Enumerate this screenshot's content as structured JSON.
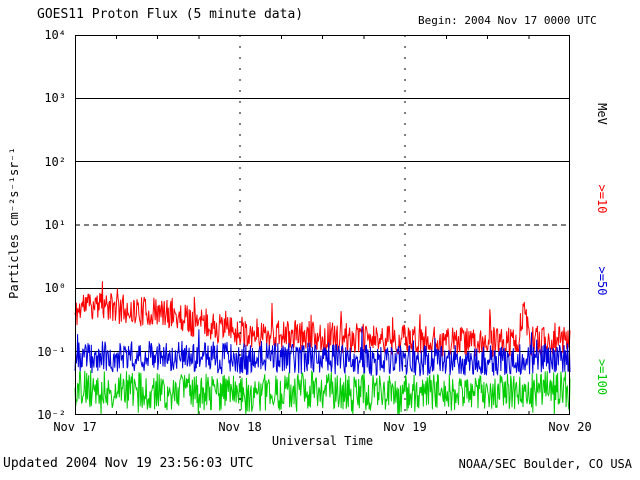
{
  "header": {
    "title": "GOES11 Proton Flux (5 minute data)",
    "begin_label": "Begin: 2004 Nov 17 0000 UTC"
  },
  "footer": {
    "updated": "Updated 2004 Nov 19 23:56:03 UTC",
    "source": "NOAA/SEC Boulder, CO USA"
  },
  "axes": {
    "ylabel": "Particles cm⁻²s⁻¹sr⁻¹",
    "xlabel": "Universal Time",
    "right_axis_title": "MeV",
    "y_tick_labels": [
      "10⁴",
      "10³",
      "10²",
      "10¹",
      "10⁰",
      "10⁻¹",
      "10⁻²"
    ],
    "x_tick_labels": [
      "Nov 17",
      "Nov 18",
      "Nov 19",
      "Nov 20"
    ]
  },
  "legend": [
    {
      "label": ">=10",
      "color": "#ff0000"
    },
    {
      "label": ">=50",
      "color": "#0000dd"
    },
    {
      "label": ">=100",
      "color": "#00cc00"
    }
  ],
  "chart_data": {
    "type": "line",
    "title": "GOES11 Proton Flux (5 minute data)",
    "xlabel": "Universal Time",
    "ylabel": "Particles cm-2 s-1 sr-1",
    "y_scale": "log10",
    "y_log10_range": [
      -2,
      4
    ],
    "x_range_days": 3,
    "x_ticks": [
      "Nov 17",
      "Nov 18",
      "Nov 19",
      "Nov 20"
    ],
    "begin": "2004 Nov 17 0000 UTC",
    "updated": "2004 Nov 19 23:56:03 UTC",
    "source": "NOAA/SEC Boulder, CO USA",
    "grid": {
      "solid_decades": [
        3,
        2,
        0,
        -1
      ],
      "dashed_decades": [
        1
      ],
      "vertical_dashed_days": [
        1,
        2
      ]
    },
    "series": [
      {
        "name": ">=10 MeV",
        "color": "#ff0000",
        "seed": 11,
        "n_points": 760,
        "noise_log10": 0.24,
        "spike_prob": 0.04,
        "spike_max": 0.45,
        "trend_log10": [
          [
            0,
            -0.42
          ],
          [
            0.05,
            -0.25
          ],
          [
            0.35,
            -0.35
          ],
          [
            0.6,
            -0.42
          ],
          [
            0.75,
            -0.55
          ],
          [
            0.95,
            -0.68
          ],
          [
            1.3,
            -0.74
          ],
          [
            1.8,
            -0.8
          ],
          [
            2.3,
            -0.84
          ],
          [
            2.68,
            -0.86
          ],
          [
            2.72,
            -0.35
          ],
          [
            2.76,
            -0.84
          ],
          [
            3,
            -0.78
          ]
        ]
      },
      {
        "name": ">=50 MeV",
        "color": "#0000dd",
        "seed": 23,
        "n_points": 760,
        "noise_log10": 0.25,
        "spike_prob": 0.02,
        "spike_max": 0.3,
        "trend_log10": [
          [
            0,
            -1.1
          ],
          [
            0.5,
            -1.05
          ],
          [
            1,
            -1.12
          ],
          [
            1.5,
            -1.1
          ],
          [
            2,
            -1.15
          ],
          [
            2.5,
            -1.14
          ],
          [
            3,
            -1.08
          ]
        ]
      },
      {
        "name": ">=100 MeV",
        "color": "#00cc00",
        "seed": 37,
        "n_points": 760,
        "noise_log10": 0.3,
        "spike_prob": 0.05,
        "spike_max": -0.35,
        "trend_log10": [
          [
            0,
            -1.58
          ],
          [
            0.5,
            -1.62
          ],
          [
            1,
            -1.66
          ],
          [
            1.5,
            -1.6
          ],
          [
            2,
            -1.66
          ],
          [
            2.5,
            -1.62
          ],
          [
            3,
            -1.6
          ]
        ]
      }
    ]
  }
}
